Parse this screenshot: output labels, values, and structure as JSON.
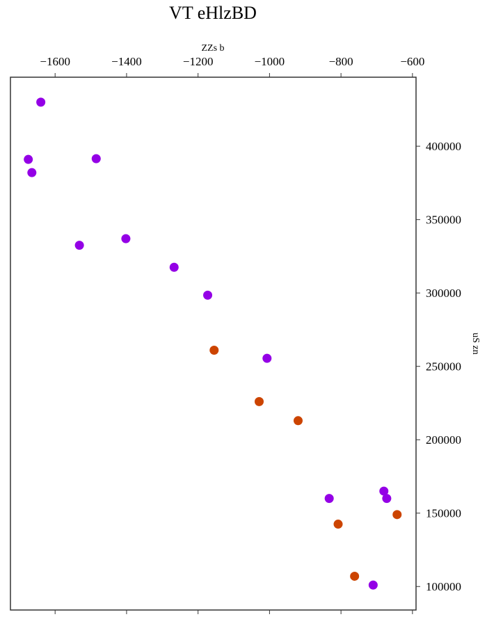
{
  "chart_data": {
    "type": "scatter",
    "title": "VT eHlzBD",
    "xlabel": "ZZs b",
    "ylabel": "uS zn",
    "xlim": [
      -1725,
      -590
    ],
    "ylim": [
      84000,
      447000
    ],
    "x_ticks": [
      -1600,
      -1400,
      -1200,
      -1000,
      -800,
      -600
    ],
    "x_tick_labels": [
      "−1600",
      "−1400",
      "−1200",
      "−1000",
      "−800",
      "−600"
    ],
    "y_ticks": [
      100000,
      150000,
      200000,
      250000,
      300000,
      350000,
      400000
    ],
    "y_tick_labels": [
      "100000",
      "150000",
      "200000",
      "250000",
      "300000",
      "350000",
      "400000"
    ],
    "x_axis_position": "top",
    "y_axis_position": "right",
    "grid": false,
    "series": [
      {
        "color": "#9400e6",
        "points": [
          {
            "x": -1640,
            "y": 430000
          },
          {
            "x": -1485,
            "y": 391500
          },
          {
            "x": -1675,
            "y": 391000
          },
          {
            "x": -1665,
            "y": 382000
          },
          {
            "x": -1402,
            "y": 337000
          },
          {
            "x": -1532,
            "y": 332500
          },
          {
            "x": -1267,
            "y": 317500
          },
          {
            "x": -1173,
            "y": 298500
          },
          {
            "x": -1007,
            "y": 255500
          },
          {
            "x": -680,
            "y": 165000
          },
          {
            "x": -672,
            "y": 160000
          },
          {
            "x": -833,
            "y": 160000
          },
          {
            "x": -710,
            "y": 101000
          }
        ]
      },
      {
        "color": "#cc4400",
        "points": [
          {
            "x": -1155,
            "y": 261000
          },
          {
            "x": -1029,
            "y": 226000
          },
          {
            "x": -920,
            "y": 213000
          },
          {
            "x": -643,
            "y": 149000
          },
          {
            "x": -808,
            "y": 142500
          },
          {
            "x": -762,
            "y": 107000
          }
        ]
      }
    ]
  }
}
